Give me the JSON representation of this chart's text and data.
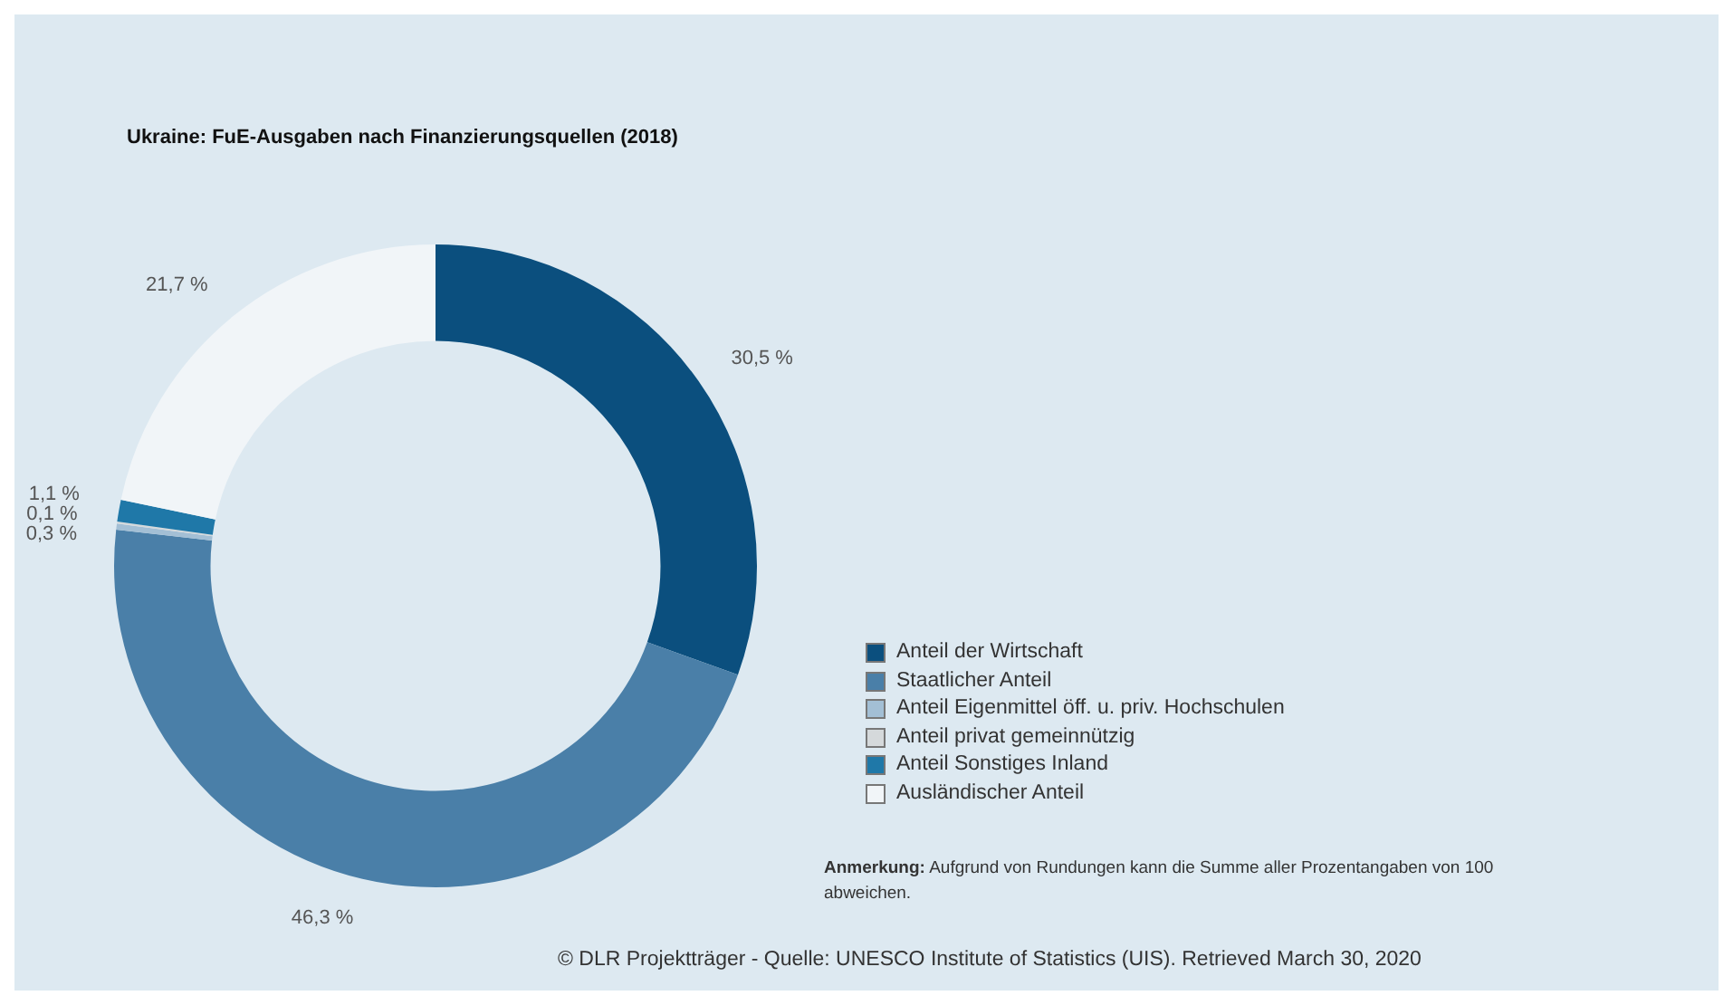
{
  "chart_data": {
    "type": "donut",
    "title": "Ukraine: FuE-Ausgaben nach Finanzierungsquellen (2018)",
    "categories": [
      "Anteil der Wirtschaft",
      "Staatlicher Anteil",
      "Anteil Eigenmittel öff. u. priv. Hochschulen",
      "Anteil privat gemeinnützig",
      "Anteil Sonstiges Inland",
      "Ausländischer Anteil"
    ],
    "values": [
      30.5,
      46.3,
      0.3,
      0.1,
      1.1,
      21.7
    ],
    "value_labels": [
      "30,5 %",
      "46,3 %",
      "0,3 %",
      "0,1 %",
      "1,1 %",
      "21,7 %"
    ],
    "colors": [
      "#0b4f7e",
      "#4a7fa8",
      "#a3bfd5",
      "#d5d9db",
      "#1f78a8",
      "#f1f5f8"
    ],
    "legend": "right",
    "annotations": [
      "Anmerkung: Aufgrund von Rundungen kann die Summe aller Prozentangaben von 100 abweichen.",
      "© DLR Projektträger - Quelle: UNESCO Institute of Statistics (UIS). Retrieved March 30, 2020"
    ]
  }
}
